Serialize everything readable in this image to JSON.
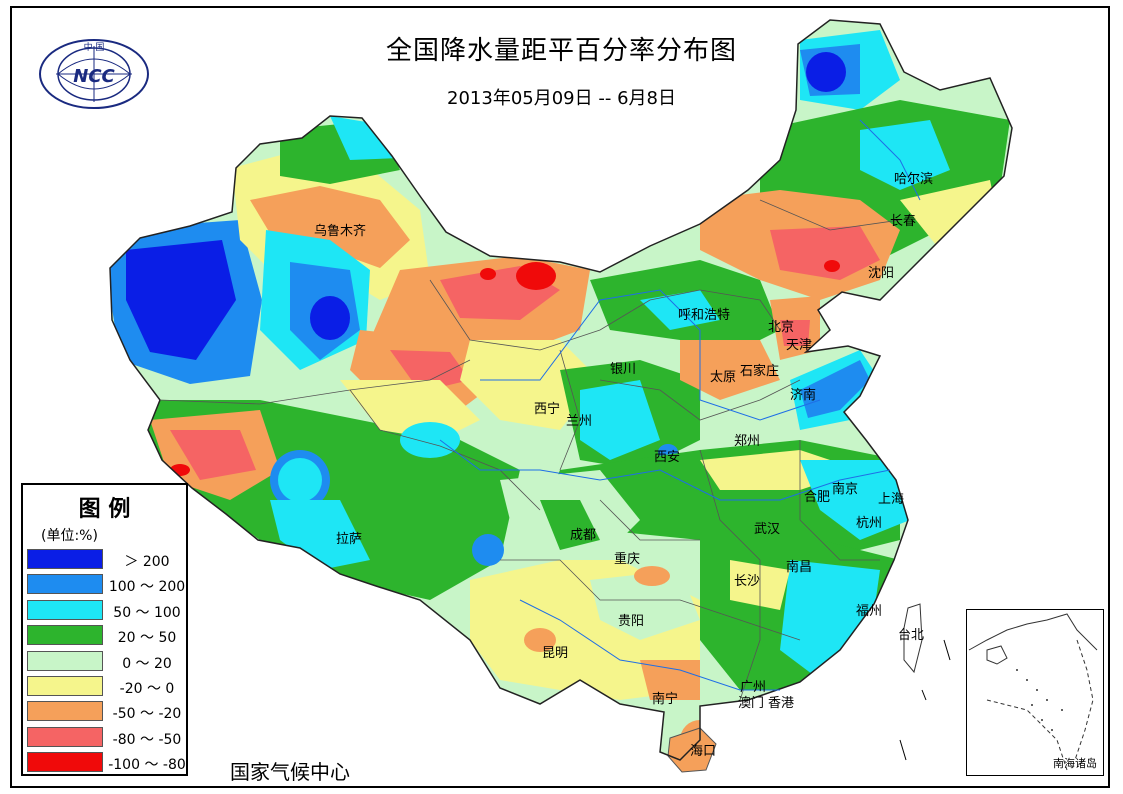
{
  "title": "全国降水量距平百分率分布图",
  "subtitle": "2013年05月09日 -- 6月8日",
  "organization": "国家气候中心",
  "logo": {
    "icon": "ncc-logo-icon",
    "text": "NCC",
    "top_text": "中  国"
  },
  "legend": {
    "title": "图 例",
    "unit": "(单位:%)",
    "items": [
      {
        "label": "＞ 200",
        "color": "#0a1ee6"
      },
      {
        "label": "100 ～ 200",
        "color": "#1e8cf0"
      },
      {
        "label": "50 ～ 100",
        "color": "#1ee6f5"
      },
      {
        "label": "20 ～ 50",
        "color": "#2db42d"
      },
      {
        "label": "0 ～ 20",
        "color": "#c8f5c8"
      },
      {
        "label": "-20 ～ 0",
        "color": "#f5f58c"
      },
      {
        "label": "-50 ～ -20",
        "color": "#f5a05a"
      },
      {
        "label": "-80 ～ -50",
        "color": "#f56464"
      },
      {
        "label": "-100 ～ -80",
        "color": "#f00a0a"
      }
    ]
  },
  "inset_label": "南海诸岛",
  "cities": [
    {
      "name": "乌鲁木齐"
    },
    {
      "name": "哈尔滨"
    },
    {
      "name": "长春"
    },
    {
      "name": "沈阳"
    },
    {
      "name": "呼和浩特"
    },
    {
      "name": "北京"
    },
    {
      "name": "天津"
    },
    {
      "name": "银川"
    },
    {
      "name": "太原"
    },
    {
      "name": "石家庄"
    },
    {
      "name": "济南"
    },
    {
      "name": "西宁"
    },
    {
      "name": "兰州"
    },
    {
      "name": "西安"
    },
    {
      "name": "郑州"
    },
    {
      "name": "合肥"
    },
    {
      "name": "南京"
    },
    {
      "name": "上海"
    },
    {
      "name": "杭州"
    },
    {
      "name": "拉萨"
    },
    {
      "name": "成都"
    },
    {
      "name": "武汉"
    },
    {
      "name": "重庆"
    },
    {
      "name": "长沙"
    },
    {
      "name": "南昌"
    },
    {
      "name": "贵阳"
    },
    {
      "name": "福州"
    },
    {
      "name": "台北"
    },
    {
      "name": "昆明"
    },
    {
      "name": "广州"
    },
    {
      "name": "南宁"
    },
    {
      "name": "澳门"
    },
    {
      "name": "香港"
    },
    {
      "name": "海口"
    }
  ]
}
